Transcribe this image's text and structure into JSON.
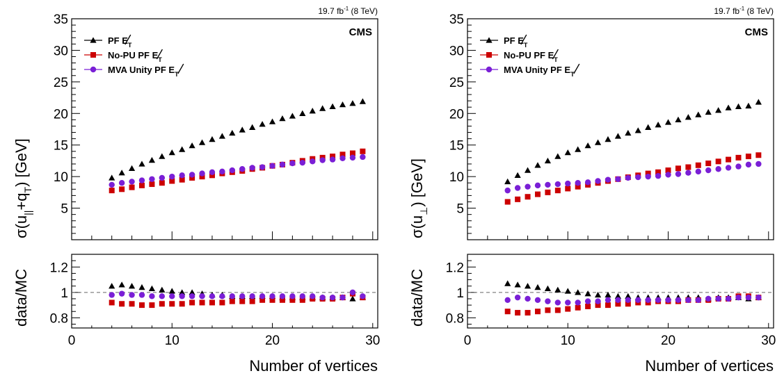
{
  "colors": {
    "pf": "#000000",
    "nopu": "#cc0000",
    "mva": "#7a1fd6",
    "frame": "#000000",
    "refline": "#666666"
  },
  "chart_data": [
    {
      "type": "scatter",
      "lumi_text": "19.7 fb",
      "lumi_sup": "-1",
      "lumi_energy": " (8 TeV)",
      "experiment": "CMS",
      "ylabel_main": {
        "base": "σ(u",
        "sub1": "||",
        "mid": "+q",
        "sub2": "T",
        "end": ") [GeV]"
      },
      "ylabel_ratio": "data/MC",
      "xlabel": "Number of vertices",
      "xlim": [
        0,
        30.5
      ],
      "ylim_main": [
        0,
        35
      ],
      "ylim_ratio": [
        0.72,
        1.3
      ],
      "xticks": [
        0,
        10,
        20,
        30
      ],
      "yticks_main": [
        5,
        10,
        15,
        20,
        25,
        30,
        35
      ],
      "yticks_ratio": [
        0.8,
        1,
        1.2
      ],
      "x": [
        4,
        5,
        6,
        7,
        8,
        9,
        10,
        11,
        12,
        13,
        14,
        15,
        16,
        17,
        18,
        19,
        20,
        21,
        22,
        23,
        24,
        25,
        26,
        27,
        28,
        29
      ],
      "series": [
        {
          "name": "PF",
          "met_label": "E",
          "met_sub": "T",
          "marker": "triangle",
          "colorKey": "pf",
          "values": [
            9.8,
            10.6,
            11.3,
            12.0,
            12.6,
            13.2,
            13.8,
            14.3,
            14.9,
            15.4,
            15.9,
            16.4,
            16.9,
            17.4,
            17.8,
            18.3,
            18.7,
            19.2,
            19.6,
            20.0,
            20.4,
            20.8,
            21.1,
            21.4,
            21.6,
            21.9
          ],
          "ratio": [
            1.05,
            1.06,
            1.05,
            1.04,
            1.03,
            1.02,
            1.01,
            1.0,
            1.0,
            0.99,
            0.98,
            0.98,
            0.97,
            0.97,
            0.97,
            0.97,
            0.97,
            0.96,
            0.96,
            0.96,
            0.96,
            0.96,
            0.96,
            0.96,
            0.95,
            0.96
          ]
        },
        {
          "name": "No-PU PF",
          "met_label": "E",
          "met_sub": "T",
          "marker": "square",
          "colorKey": "nopu",
          "values": [
            7.8,
            8.0,
            8.3,
            8.6,
            8.8,
            9.0,
            9.3,
            9.5,
            9.8,
            10.0,
            10.2,
            10.5,
            10.7,
            10.9,
            11.2,
            11.4,
            11.7,
            11.9,
            12.2,
            12.5,
            12.8,
            13.0,
            13.2,
            13.5,
            13.7,
            14.0
          ],
          "ratio": [
            0.92,
            0.91,
            0.91,
            0.9,
            0.9,
            0.91,
            0.91,
            0.91,
            0.92,
            0.92,
            0.92,
            0.92,
            0.93,
            0.93,
            0.93,
            0.94,
            0.94,
            0.94,
            0.94,
            0.94,
            0.95,
            0.95,
            0.95,
            0.96,
            0.99,
            0.96
          ]
        },
        {
          "name": "MVA Unity PF",
          "met_label": "E",
          "met_sub": "T",
          "marker": "circle",
          "colorKey": "mva",
          "values": [
            8.7,
            9.0,
            9.2,
            9.4,
            9.6,
            9.8,
            10.0,
            10.2,
            10.3,
            10.5,
            10.7,
            10.8,
            11.0,
            11.2,
            11.4,
            11.5,
            11.7,
            11.9,
            12.1,
            12.2,
            12.4,
            12.6,
            12.7,
            12.9,
            13.0,
            13.1
          ],
          "ratio": [
            0.98,
            0.99,
            0.98,
            0.98,
            0.97,
            0.97,
            0.97,
            0.97,
            0.97,
            0.97,
            0.97,
            0.97,
            0.97,
            0.97,
            0.97,
            0.97,
            0.97,
            0.97,
            0.97,
            0.97,
            0.97,
            0.96,
            0.96,
            0.96,
            1.0,
            0.97
          ]
        }
      ]
    },
    {
      "type": "scatter",
      "lumi_text": "19.7 fb",
      "lumi_sup": "-1",
      "lumi_energy": " (8 TeV)",
      "experiment": "CMS",
      "ylabel_main": {
        "base": "σ(u",
        "sub1": "⊥",
        "mid": "",
        "sub2": "",
        "end": ") [GeV]"
      },
      "ylabel_ratio": "data/MC",
      "xlabel": "Number of vertices",
      "xlim": [
        0,
        30.5
      ],
      "ylim_main": [
        0,
        35
      ],
      "ylim_ratio": [
        0.72,
        1.3
      ],
      "xticks": [
        0,
        10,
        20,
        30
      ],
      "yticks_main": [
        5,
        10,
        15,
        20,
        25,
        30,
        35
      ],
      "yticks_ratio": [
        0.8,
        1,
        1.2
      ],
      "x": [
        4,
        5,
        6,
        7,
        8,
        9,
        10,
        11,
        12,
        13,
        14,
        15,
        16,
        17,
        18,
        19,
        20,
        21,
        22,
        23,
        24,
        25,
        26,
        27,
        28,
        29
      ],
      "series": [
        {
          "name": "PF",
          "met_label": "E",
          "met_sub": "T",
          "marker": "triangle",
          "colorKey": "pf",
          "values": [
            9.2,
            10.2,
            11.0,
            11.8,
            12.5,
            13.2,
            13.8,
            14.3,
            14.9,
            15.4,
            15.9,
            16.4,
            16.9,
            17.3,
            17.8,
            18.2,
            18.6,
            19.0,
            19.4,
            19.8,
            20.2,
            20.5,
            20.9,
            21.1,
            21.2,
            21.8
          ],
          "ratio": [
            1.07,
            1.06,
            1.05,
            1.04,
            1.03,
            1.02,
            1.01,
            1.0,
            0.99,
            0.98,
            0.98,
            0.97,
            0.97,
            0.96,
            0.96,
            0.96,
            0.96,
            0.96,
            0.96,
            0.96,
            0.95,
            0.96,
            0.96,
            0.96,
            0.95,
            0.96
          ]
        },
        {
          "name": "No-PU PF",
          "met_label": "E",
          "met_sub": "T",
          "marker": "square",
          "colorKey": "nopu",
          "values": [
            6.0,
            6.4,
            6.8,
            7.2,
            7.5,
            7.8,
            8.1,
            8.4,
            8.7,
            9.0,
            9.3,
            9.6,
            9.9,
            10.2,
            10.5,
            10.7,
            11.0,
            11.3,
            11.5,
            11.8,
            12.1,
            12.4,
            12.7,
            13.0,
            13.2,
            13.4
          ],
          "ratio": [
            0.85,
            0.84,
            0.84,
            0.85,
            0.86,
            0.86,
            0.87,
            0.88,
            0.89,
            0.9,
            0.9,
            0.91,
            0.91,
            0.92,
            0.92,
            0.93,
            0.93,
            0.93,
            0.94,
            0.94,
            0.94,
            0.95,
            0.95,
            0.97,
            0.97,
            0.96
          ]
        },
        {
          "name": "MVA Unity PF",
          "met_label": "E",
          "met_sub": "T",
          "marker": "circle",
          "colorKey": "mva",
          "values": [
            7.8,
            8.2,
            8.4,
            8.6,
            8.7,
            8.8,
            8.9,
            9.0,
            9.1,
            9.3,
            9.5,
            9.6,
            9.8,
            9.9,
            10.0,
            10.1,
            10.3,
            10.4,
            10.6,
            10.8,
            11.0,
            11.2,
            11.4,
            11.6,
            11.9,
            12.0
          ],
          "ratio": [
            0.94,
            0.96,
            0.95,
            0.94,
            0.93,
            0.92,
            0.92,
            0.92,
            0.93,
            0.93,
            0.94,
            0.94,
            0.94,
            0.94,
            0.94,
            0.94,
            0.94,
            0.94,
            0.94,
            0.94,
            0.95,
            0.95,
            0.95,
            0.96,
            0.96,
            0.96
          ]
        }
      ]
    }
  ]
}
